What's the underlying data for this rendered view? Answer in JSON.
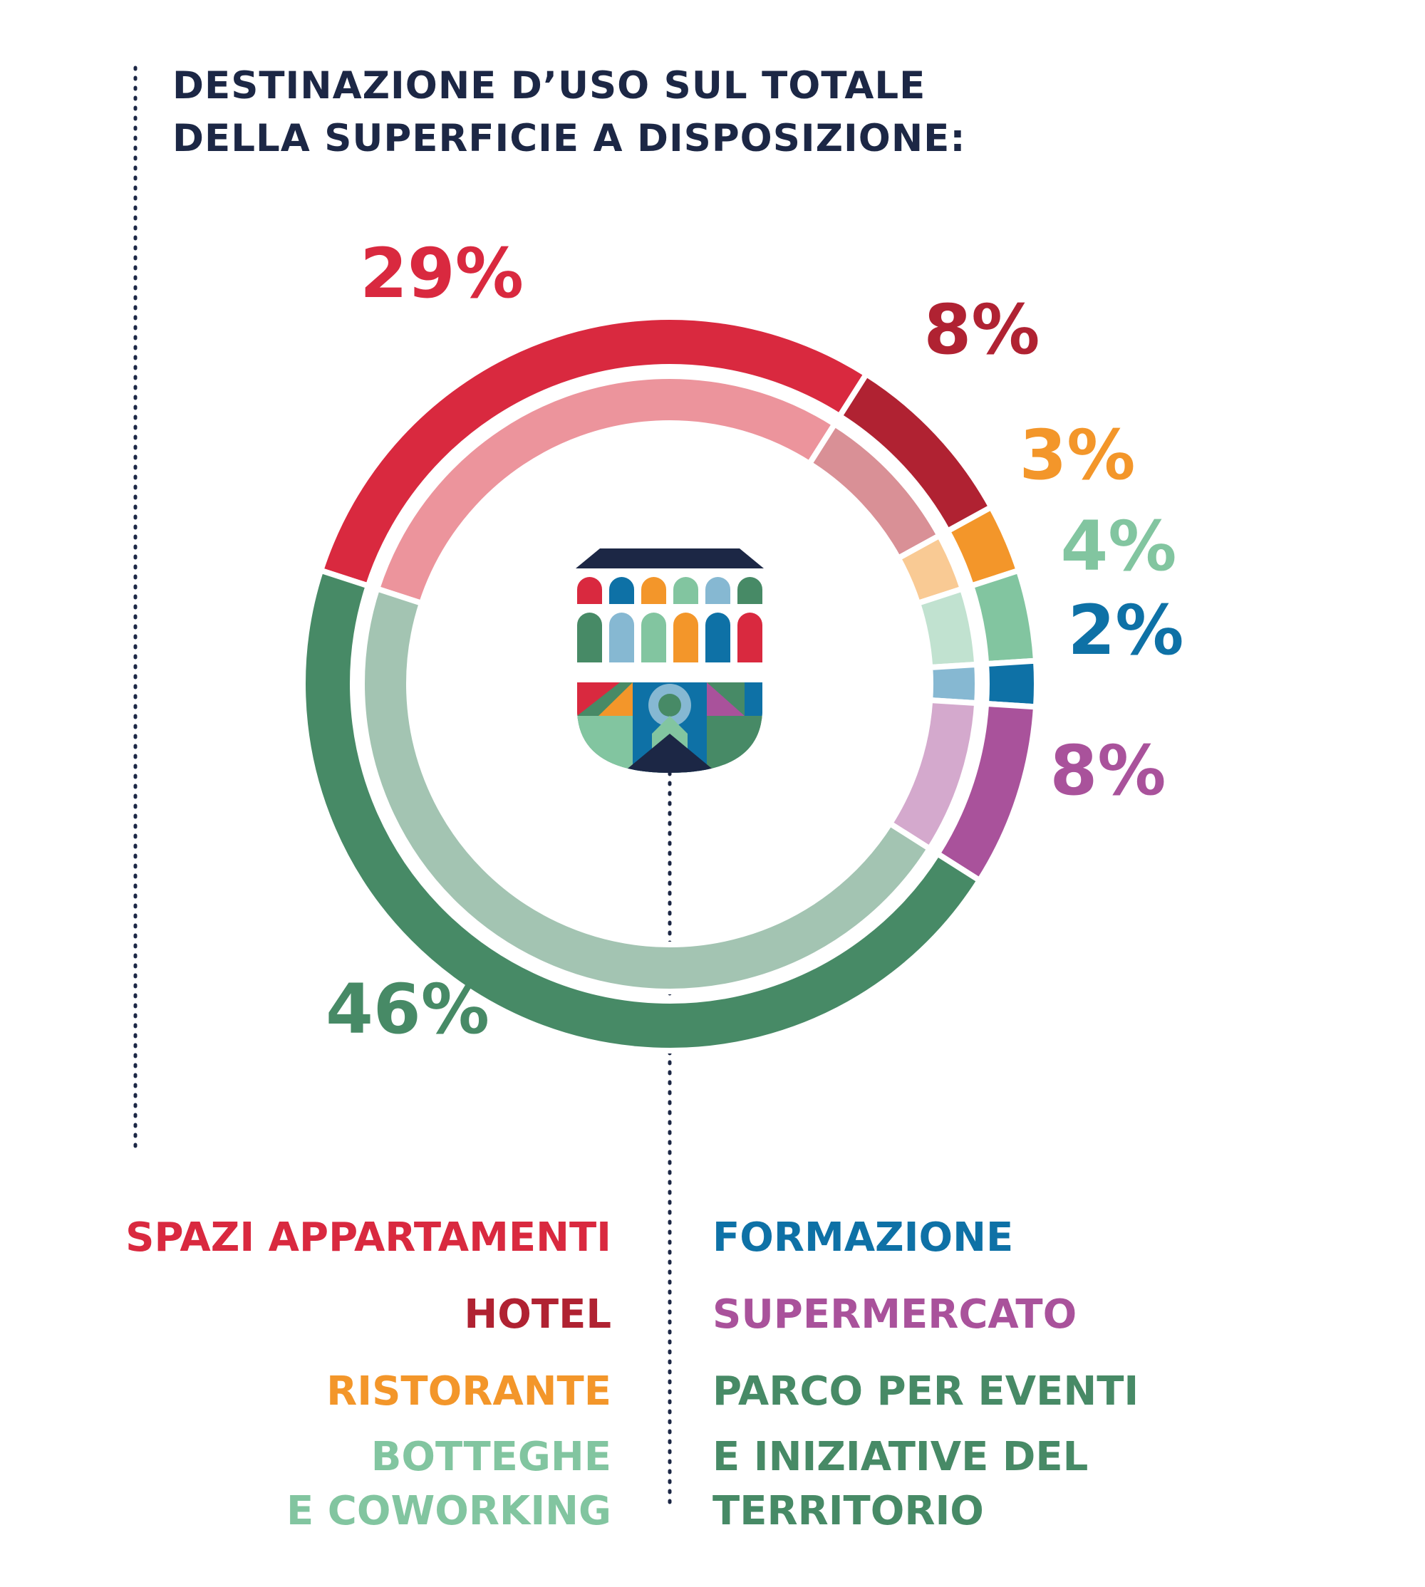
{
  "title": {
    "line1": "DESTINAZIONE D’USO SUL TOTALE",
    "line2": "DELLA SUPERFICIE A DISPOSIZIONE:"
  },
  "chart_data": {
    "type": "pie",
    "series": [
      {
        "category": "SPAZI APPARTAMENTI",
        "value": 29,
        "label": "29%",
        "color": "#d9293f",
        "inner_color": "#ec949c"
      },
      {
        "category": "HOTEL",
        "value": 8,
        "label": "8%",
        "color": "#b02232",
        "inner_color": "#d99096"
      },
      {
        "category": "RISTORANTE",
        "value": 3,
        "label": "3%",
        "color": "#f3962a",
        "inner_color": "#f9ca94"
      },
      {
        "category": "BOTTEGHE E COWORKING",
        "value": 4,
        "label": "4%",
        "color": "#82c5a0",
        "inner_color": "#c1e2d0"
      },
      {
        "category": "FORMAZIONE",
        "value": 2,
        "label": "2%",
        "color": "#0e71a6",
        "inner_color": "#86b8d2"
      },
      {
        "category": "SUPERMERCATO",
        "value": 8,
        "label": "8%",
        "color": "#a9529b",
        "inner_color": "#d4a9cd"
      },
      {
        "category": "PARCO PER EVENTI E INIZIATIVE DEL TERRITORIO",
        "value": 46,
        "label": "46%",
        "color": "#478a66",
        "inner_color": "#a3c4b2"
      }
    ]
  },
  "legend": {
    "left": [
      {
        "text": "SPAZI APPARTAMENTI",
        "color": "#d9293f"
      },
      {
        "text": "HOTEL",
        "color": "#b02232"
      },
      {
        "text": "RISTORANTE",
        "color": "#f3962a"
      },
      {
        "text": "BOTTEGHE",
        "color": "#82c5a0"
      },
      {
        "text": "E COWORKING",
        "color": "#82c5a0"
      }
    ],
    "right": [
      {
        "text": "FORMAZIONE",
        "color": "#0e71a6"
      },
      {
        "text": "SUPERMERCATO",
        "color": "#a9529b"
      },
      {
        "text": "PARCO PER EVENTI",
        "color": "#478a66"
      },
      {
        "text": "E INIZIATIVE DEL",
        "color": "#478a66"
      },
      {
        "text": "TERRITORIO",
        "color": "#478a66"
      }
    ]
  },
  "colors": {
    "navy": "#1c2745"
  }
}
